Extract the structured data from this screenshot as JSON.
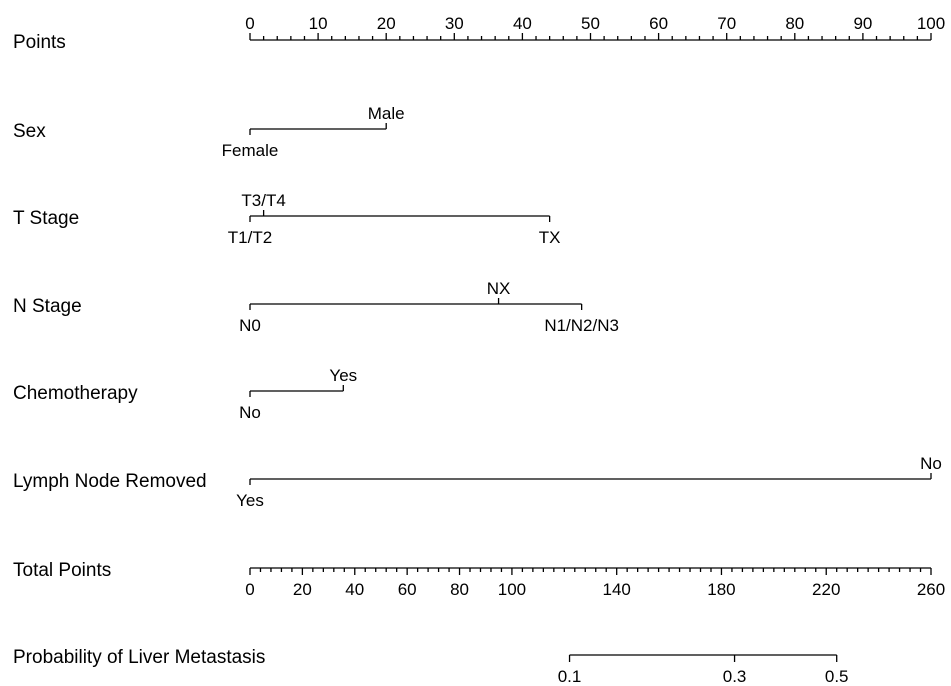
{
  "chart_data": {
    "type": "nomogram",
    "points_axis": {
      "label": "Points",
      "min": 0,
      "max": 100,
      "major_ticks": [
        0,
        10,
        20,
        30,
        40,
        50,
        60,
        70,
        80,
        90,
        100
      ],
      "minor_step": 2
    },
    "variables": [
      {
        "name": "Sex",
        "levels": [
          {
            "label": "Female",
            "points": 0,
            "label_side": "below"
          },
          {
            "label": "Male",
            "points": 20,
            "label_side": "above"
          }
        ]
      },
      {
        "name": "T Stage",
        "levels": [
          {
            "label": "T1/T2",
            "points": 0,
            "label_side": "below"
          },
          {
            "label": "T3/T4",
            "points": 2,
            "label_side": "above"
          },
          {
            "label": "TX",
            "points": 44,
            "label_side": "below"
          }
        ]
      },
      {
        "name": "N Stage",
        "levels": [
          {
            "label": "N0",
            "points": 0,
            "label_side": "below"
          },
          {
            "label": "NX",
            "points": 36.5,
            "label_side": "above"
          },
          {
            "label": "N1/N2/N3",
            "points": 48.7,
            "label_side": "below"
          }
        ]
      },
      {
        "name": "Chemotherapy",
        "levels": [
          {
            "label": "No",
            "points": 0,
            "label_side": "below"
          },
          {
            "label": "Yes",
            "points": 13.7,
            "label_side": "above"
          }
        ]
      },
      {
        "name": "Lymph Node Removed",
        "levels": [
          {
            "label": "Yes",
            "points": 0,
            "label_side": "below"
          },
          {
            "label": "No",
            "points": 100,
            "label_side": "above"
          }
        ]
      }
    ],
    "total_points_axis": {
      "label": "Total Points",
      "min": 0,
      "max": 260,
      "major_ticks": [
        0,
        20,
        40,
        60,
        80,
        100,
        140,
        180,
        220,
        260
      ],
      "minor_step": 4
    },
    "probability_axis": {
      "label": "Probability of Liver Metastasis",
      "ticks": [
        {
          "label": "0.1",
          "total_points": 122
        },
        {
          "label": "0.3",
          "total_points": 185
        },
        {
          "label": "0.5",
          "total_points": 224
        }
      ],
      "range_total_points": [
        122,
        224
      ]
    }
  }
}
